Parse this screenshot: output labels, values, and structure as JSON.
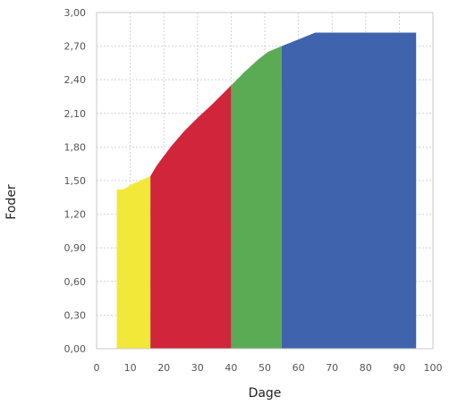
{
  "chart_data": {
    "type": "area",
    "xlabel": "Dage",
    "ylabel": "Foder",
    "xlim": [
      0,
      100
    ],
    "ylim": [
      0,
      3.0
    ],
    "x_ticks": [
      0,
      10,
      20,
      30,
      40,
      50,
      60,
      70,
      80,
      90,
      100
    ],
    "x_tick_labels": [
      "0",
      "10",
      "20",
      "30",
      "40",
      "50",
      "60",
      "70",
      "80",
      "90",
      "100"
    ],
    "y_ticks": [
      0,
      0.3,
      0.6,
      0.9,
      1.2,
      1.5,
      1.8,
      2.1,
      2.4,
      2.7,
      3.0
    ],
    "y_tick_labels": [
      "0,00",
      "0,30",
      "0,60",
      "0,90",
      "1,20",
      "1,50",
      "1,80",
      "2,10",
      "2,40",
      "2,70",
      "3,00"
    ],
    "grid": true,
    "series": [
      {
        "color": "#f2e83a",
        "x": [
          6,
          8,
          10,
          13,
          16
        ],
        "y": [
          1.42,
          1.42,
          1.46,
          1.5,
          1.54
        ]
      },
      {
        "color": "#d0253a",
        "x": [
          16,
          18,
          22,
          26,
          30,
          34,
          38,
          40
        ],
        "y": [
          1.54,
          1.64,
          1.8,
          1.94,
          2.06,
          2.17,
          2.29,
          2.35
        ]
      },
      {
        "color": "#5aab54",
        "x": [
          40,
          44,
          48,
          51,
          55
        ],
        "y": [
          2.35,
          2.47,
          2.58,
          2.65,
          2.7
        ]
      },
      {
        "color": "#3f63ad",
        "x": [
          55,
          60,
          65,
          70,
          75,
          80,
          85,
          90,
          95
        ],
        "y": [
          2.7,
          2.76,
          2.82,
          2.82,
          2.82,
          2.82,
          2.82,
          2.82,
          2.82
        ]
      }
    ]
  }
}
